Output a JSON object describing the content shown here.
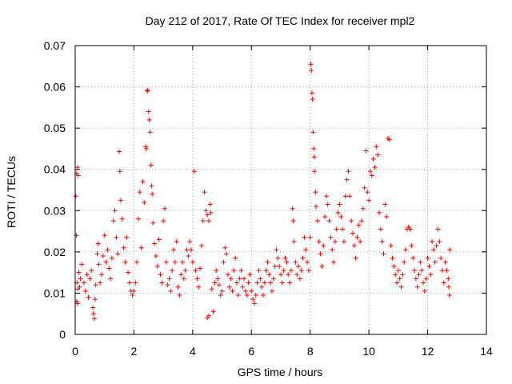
{
  "chart_data": {
    "type": "scatter",
    "title": "Day 212 of 2017, Rate Of TEC Index for receiver mpl2",
    "xlabel": "GPS time / hours",
    "ylabel": "ROTI / TECUs",
    "xlim": [
      0,
      14
    ],
    "ylim": [
      0,
      0.07
    ],
    "xticks": [
      0,
      2,
      4,
      6,
      8,
      10,
      12,
      14
    ],
    "yticks": [
      0,
      0.01,
      0.02,
      0.03,
      0.04,
      0.05,
      0.06,
      0.07
    ],
    "xtick_labels": [
      "0",
      "2",
      "4",
      "6",
      "8",
      "10",
      "12",
      "14"
    ],
    "ytick_labels": [
      "0",
      "0.01",
      "0.02",
      "0.03",
      "0.04",
      "0.05",
      "0.06",
      "0.07"
    ],
    "grid": true,
    "marker": "+",
    "colors": {
      "series": "#ff0000",
      "grid": "#a0a0a0",
      "axis": "#000000"
    },
    "series": [
      {
        "name": "ROTI",
        "points": [
          [
            0.02,
            0.0335
          ],
          [
            0.05,
            0.039
          ],
          [
            0.08,
            0.0405
          ],
          [
            0.1,
            0.0385
          ],
          [
            0.04,
            0.024
          ],
          [
            0.06,
            0.0125
          ],
          [
            0.09,
            0.011
          ],
          [
            0.12,
            0.015
          ],
          [
            0.15,
            0.0115
          ],
          [
            0.18,
            0.0135
          ],
          [
            0.22,
            0.017
          ],
          [
            0.05,
            0.008
          ],
          [
            0.08,
            0.0075
          ],
          [
            0.3,
            0.0125
          ],
          [
            0.35,
            0.0105
          ],
          [
            0.4,
            0.0145
          ],
          [
            0.45,
            0.009
          ],
          [
            0.5,
            0.0135
          ],
          [
            0.55,
            0.0155
          ],
          [
            0.6,
            0.0065
          ],
          [
            0.62,
            0.005
          ],
          [
            0.65,
            0.0038
          ],
          [
            0.68,
            0.0085
          ],
          [
            0.7,
            0.012
          ],
          [
            0.75,
            0.0195
          ],
          [
            0.78,
            0.022
          ],
          [
            0.8,
            0.017
          ],
          [
            0.85,
            0.0125
          ],
          [
            0.9,
            0.0145
          ],
          [
            0.95,
            0.019
          ],
          [
            1.0,
            0.024
          ],
          [
            1.05,
            0.0175
          ],
          [
            1.1,
            0.0205
          ],
          [
            1.15,
            0.016
          ],
          [
            1.2,
            0.0135
          ],
          [
            1.25,
            0.0185
          ],
          [
            1.3,
            0.0275
          ],
          [
            1.35,
            0.03
          ],
          [
            1.4,
            0.0235
          ],
          [
            1.45,
            0.0195
          ],
          [
            1.5,
            0.0443
          ],
          [
            1.52,
            0.0395
          ],
          [
            1.55,
            0.0325
          ],
          [
            1.6,
            0.028
          ],
          [
            1.65,
            0.021
          ],
          [
            1.7,
            0.0175
          ],
          [
            1.75,
            0.0235
          ],
          [
            1.8,
            0.015
          ],
          [
            1.85,
            0.0125
          ],
          [
            1.9,
            0.0105
          ],
          [
            1.95,
            0.0095
          ],
          [
            2.0,
            0.0105
          ],
          [
            2.05,
            0.0125
          ],
          [
            2.1,
            0.0175
          ],
          [
            2.15,
            0.028
          ],
          [
            2.2,
            0.0345
          ],
          [
            2.25,
            0.021
          ],
          [
            2.3,
            0.037
          ],
          [
            2.35,
            0.032
          ],
          [
            2.4,
            0.0455
          ],
          [
            2.42,
            0.045
          ],
          [
            2.45,
            0.059
          ],
          [
            2.47,
            0.0592
          ],
          [
            2.5,
            0.054
          ],
          [
            2.52,
            0.052
          ],
          [
            2.55,
            0.049
          ],
          [
            2.58,
            0.041
          ],
          [
            2.6,
            0.036
          ],
          [
            2.62,
            0.034
          ],
          [
            2.65,
            0.027
          ],
          [
            2.7,
            0.022
          ],
          [
            2.75,
            0.019
          ],
          [
            2.8,
            0.0165
          ],
          [
            2.85,
            0.023
          ],
          [
            2.9,
            0.0145
          ],
          [
            2.95,
            0.0125
          ],
          [
            3.0,
            0.0275
          ],
          [
            3.05,
            0.0305
          ],
          [
            3.1,
            0.0175
          ],
          [
            3.15,
            0.012
          ],
          [
            3.2,
            0.0135
          ],
          [
            3.25,
            0.0105
          ],
          [
            3.3,
            0.0155
          ],
          [
            3.35,
            0.0205
          ],
          [
            3.4,
            0.0175
          ],
          [
            3.45,
            0.0225
          ],
          [
            3.5,
            0.0115
          ],
          [
            3.55,
            0.0095
          ],
          [
            3.6,
            0.0145
          ],
          [
            3.65,
            0.0175
          ],
          [
            3.7,
            0.0135
          ],
          [
            3.75,
            0.0155
          ],
          [
            3.8,
            0.0205
          ],
          [
            3.85,
            0.019
          ],
          [
            3.9,
            0.0225
          ],
          [
            3.95,
            0.0205
          ],
          [
            4.0,
            0.0175
          ],
          [
            4.05,
            0.0395
          ],
          [
            4.1,
            0.0155
          ],
          [
            4.15,
            0.0135
          ],
          [
            4.2,
            0.0115
          ],
          [
            4.25,
            0.016
          ],
          [
            4.3,
            0.0215
          ],
          [
            4.35,
            0.0275
          ],
          [
            4.4,
            0.0345
          ],
          [
            4.45,
            0.03
          ],
          [
            4.5,
            0.029
          ],
          [
            4.55,
            0.0275
          ],
          [
            4.6,
            0.0315
          ],
          [
            4.62,
            0.0295
          ],
          [
            4.65,
            0.011
          ],
          [
            4.7,
            0.0055
          ],
          [
            4.5,
            0.004
          ],
          [
            4.55,
            0.0045
          ],
          [
            4.75,
            0.0125
          ],
          [
            4.8,
            0.0155
          ],
          [
            4.85,
            0.0135
          ],
          [
            4.9,
            0.012
          ],
          [
            4.95,
            0.0095
          ],
          [
            5.0,
            0.0105
          ],
          [
            5.05,
            0.0175
          ],
          [
            5.1,
            0.021
          ],
          [
            5.15,
            0.0195
          ],
          [
            5.2,
            0.0145
          ],
          [
            5.25,
            0.0115
          ],
          [
            5.3,
            0.0135
          ],
          [
            5.35,
            0.0105
          ],
          [
            5.4,
            0.0155
          ],
          [
            5.45,
            0.0185
          ],
          [
            5.5,
            0.0125
          ],
          [
            5.55,
            0.0095
          ],
          [
            5.6,
            0.0135
          ],
          [
            5.65,
            0.0155
          ],
          [
            5.7,
            0.0115
          ],
          [
            5.75,
            0.0135
          ],
          [
            5.8,
            0.0105
          ],
          [
            5.85,
            0.0095
          ],
          [
            5.9,
            0.0125
          ],
          [
            5.95,
            0.0145
          ],
          [
            6.0,
            0.0105
          ],
          [
            6.05,
            0.0085
          ],
          [
            6.1,
            0.0075
          ],
          [
            6.15,
            0.0095
          ],
          [
            6.2,
            0.0125
          ],
          [
            6.25,
            0.0155
          ],
          [
            6.3,
            0.0135
          ],
          [
            6.35,
            0.0115
          ],
          [
            6.4,
            0.0095
          ],
          [
            6.45,
            0.0125
          ],
          [
            6.5,
            0.0155
          ],
          [
            6.55,
            0.0175
          ],
          [
            6.6,
            0.0145
          ],
          [
            6.65,
            0.0125
          ],
          [
            6.7,
            0.0105
          ],
          [
            6.75,
            0.0135
          ],
          [
            6.8,
            0.0165
          ],
          [
            6.85,
            0.0205
          ],
          [
            6.9,
            0.0185
          ],
          [
            6.95,
            0.0165
          ],
          [
            7.0,
            0.0145
          ],
          [
            7.05,
            0.0125
          ],
          [
            7.1,
            0.0155
          ],
          [
            7.15,
            0.0185
          ],
          [
            7.2,
            0.0175
          ],
          [
            7.25,
            0.0145
          ],
          [
            7.3,
            0.0125
          ],
          [
            7.35,
            0.0155
          ],
          [
            7.4,
            0.0305
          ],
          [
            7.42,
            0.0275
          ],
          [
            7.45,
            0.0225
          ],
          [
            7.5,
            0.0175
          ],
          [
            7.55,
            0.0145
          ],
          [
            7.6,
            0.0165
          ],
          [
            7.65,
            0.0135
          ],
          [
            7.7,
            0.0155
          ],
          [
            7.75,
            0.0185
          ],
          [
            7.8,
            0.0235
          ],
          [
            7.85,
            0.0205
          ],
          [
            7.9,
            0.0175
          ],
          [
            7.95,
            0.0155
          ],
          [
            8.0,
            0.0235
          ],
          [
            8.02,
            0.0655
          ],
          [
            8.04,
            0.064
          ],
          [
            8.06,
            0.0585
          ],
          [
            8.08,
            0.057
          ],
          [
            8.1,
            0.049
          ],
          [
            8.12,
            0.045
          ],
          [
            8.14,
            0.043
          ],
          [
            8.15,
            0.0395
          ],
          [
            8.18,
            0.0345
          ],
          [
            8.2,
            0.031
          ],
          [
            8.25,
            0.0275
          ],
          [
            8.3,
            0.0225
          ],
          [
            8.35,
            0.0195
          ],
          [
            8.4,
            0.0165
          ],
          [
            8.45,
            0.0215
          ],
          [
            8.5,
            0.0285
          ],
          [
            8.55,
            0.0335
          ],
          [
            8.6,
            0.0315
          ],
          [
            8.65,
            0.0275
          ],
          [
            8.7,
            0.0235
          ],
          [
            8.75,
            0.0205
          ],
          [
            8.8,
            0.0175
          ],
          [
            8.85,
            0.0225
          ],
          [
            8.9,
            0.0255
          ],
          [
            8.95,
            0.0295
          ],
          [
            9.0,
            0.0315
          ],
          [
            9.05,
            0.0285
          ],
          [
            9.1,
            0.0255
          ],
          [
            9.15,
            0.0225
          ],
          [
            9.2,
            0.0335
          ],
          [
            9.25,
            0.0375
          ],
          [
            9.3,
            0.0395
          ],
          [
            9.35,
            0.0335
          ],
          [
            9.4,
            0.0275
          ],
          [
            9.45,
            0.0245
          ],
          [
            9.5,
            0.0215
          ],
          [
            9.55,
            0.0185
          ],
          [
            9.6,
            0.0235
          ],
          [
            9.65,
            0.0265
          ],
          [
            9.7,
            0.0225
          ],
          [
            9.75,
            0.0275
          ],
          [
            9.8,
            0.0305
          ],
          [
            9.85,
            0.0355
          ],
          [
            9.9,
            0.0445
          ],
          [
            9.95,
            0.0345
          ],
          [
            10.0,
            0.0325
          ],
          [
            10.05,
            0.0395
          ],
          [
            10.1,
            0.0385
          ],
          [
            10.15,
            0.0425
          ],
          [
            10.2,
            0.0405
          ],
          [
            10.25,
            0.0455
          ],
          [
            10.3,
            0.0435
          ],
          [
            10.35,
            0.0295
          ],
          [
            10.4,
            0.0255
          ],
          [
            10.45,
            0.0225
          ],
          [
            10.5,
            0.0195
          ],
          [
            10.55,
            0.0315
          ],
          [
            10.6,
            0.0285
          ],
          [
            10.65,
            0.0475
          ],
          [
            10.7,
            0.0472
          ],
          [
            10.75,
            0.0215
          ],
          [
            10.8,
            0.0185
          ],
          [
            10.85,
            0.0165
          ],
          [
            10.9,
            0.0145
          ],
          [
            10.95,
            0.0125
          ],
          [
            11.0,
            0.0155
          ],
          [
            11.05,
            0.0135
          ],
          [
            11.1,
            0.0115
          ],
          [
            11.15,
            0.0145
          ],
          [
            11.2,
            0.0175
          ],
          [
            11.25,
            0.0205
          ],
          [
            11.3,
            0.0255
          ],
          [
            11.35,
            0.026
          ],
          [
            11.4,
            0.0255
          ],
          [
            11.45,
            0.0215
          ],
          [
            11.5,
            0.0185
          ],
          [
            11.55,
            0.0155
          ],
          [
            11.6,
            0.0135
          ],
          [
            11.65,
            0.0115
          ],
          [
            11.7,
            0.0145
          ],
          [
            11.75,
            0.0175
          ],
          [
            11.8,
            0.0155
          ],
          [
            11.85,
            0.0125
          ],
          [
            11.9,
            0.0105
          ],
          [
            11.95,
            0.0135
          ],
          [
            12.0,
            0.0185
          ],
          [
            12.05,
            0.0165
          ],
          [
            12.1,
            0.0145
          ],
          [
            12.15,
            0.0225
          ],
          [
            12.2,
            0.0205
          ],
          [
            12.25,
            0.0175
          ],
          [
            12.3,
            0.0215
          ],
          [
            12.35,
            0.0255
          ],
          [
            12.4,
            0.0225
          ],
          [
            12.45,
            0.0185
          ],
          [
            12.5,
            0.0155
          ],
          [
            12.55,
            0.0125
          ],
          [
            12.6,
            0.0175
          ],
          [
            12.65,
            0.0155
          ],
          [
            12.7,
            0.0135
          ],
          [
            12.72,
            0.0115
          ],
          [
            12.74,
            0.0095
          ],
          [
            12.75,
            0.0205
          ]
        ]
      }
    ]
  }
}
